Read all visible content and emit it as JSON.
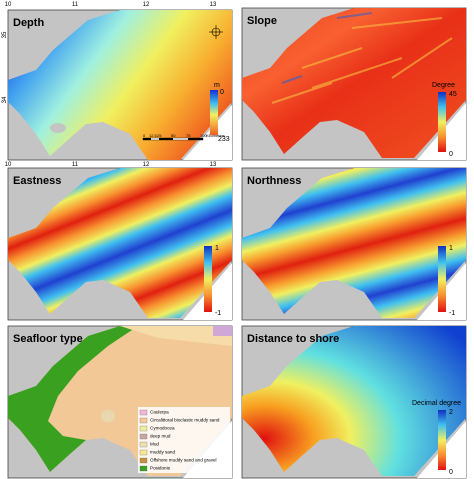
{
  "depth": {
    "title": "Depth",
    "unit": "m",
    "scale_top": 0,
    "scale_bottom": 233,
    "lon_labels_top": [
      10,
      11,
      12,
      13
    ],
    "lon_labels_bottom": [
      10,
      11,
      12,
      13
    ],
    "lat_labels": [
      35,
      34
    ],
    "scale_bar": {
      "ticks": [
        0,
        12.5,
        25,
        50,
        75,
        100
      ],
      "unit": "Kilometers"
    }
  },
  "slope": {
    "title": "Slope",
    "unit": "Degree",
    "scale_top": 45,
    "scale_bottom": 0
  },
  "eastness": {
    "title": "Eastness",
    "scale_top": 1,
    "scale_bottom": -1
  },
  "northness": {
    "title": "Northness",
    "scale_top": 1,
    "scale_bottom": -1
  },
  "seafloor": {
    "title": "Seafloor type",
    "legend": [
      "Caulerpa",
      "Circalittoral  bioclastic muddy sand",
      "Cymodocea",
      "deep mud",
      "Mud",
      "muddy sand",
      "Offshore muddy sand and gravel",
      "Posidonie"
    ]
  },
  "distance": {
    "title": "Distance to shore",
    "unit": "Decimal degree",
    "scale_top": 2,
    "scale_bottom": 0
  }
}
